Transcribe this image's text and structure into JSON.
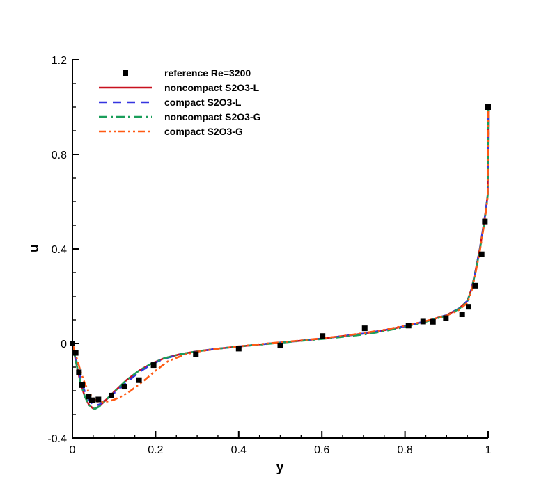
{
  "chart_data": {
    "type": "line",
    "xlabel": "y",
    "ylabel": "u",
    "xlim": [
      0,
      1
    ],
    "ylim": [
      -0.4,
      1.2
    ],
    "x_ticks": [
      {
        "value": 0,
        "label": "0"
      },
      {
        "value": 0.2,
        "label": "0.2"
      },
      {
        "value": 0.4,
        "label": "0.4"
      },
      {
        "value": 0.6,
        "label": "0.6"
      },
      {
        "value": 0.8,
        "label": "0.8"
      },
      {
        "value": 1,
        "label": "1"
      }
    ],
    "y_ticks": [
      {
        "value": -0.4,
        "label": "-0.4"
      },
      {
        "value": 0,
        "label": "0"
      },
      {
        "value": 0.4,
        "label": "0.4"
      },
      {
        "value": 0.8,
        "label": "0.8"
      },
      {
        "value": 1.2,
        "label": "1.2"
      }
    ],
    "grid": false,
    "legend_position": "top-left",
    "series": [
      {
        "name": "reference Re=3200",
        "kind": "markers",
        "color": "#000000",
        "x": [
          0,
          0.0078,
          0.0156,
          0.0234,
          0.0391,
          0.0469,
          0.0625,
          0.0938,
          0.125,
          0.1602,
          0.1953,
          0.2969,
          0.4,
          0.5,
          0.6016,
          0.7031,
          0.8086,
          0.8438,
          0.8672,
          0.8984,
          0.9375,
          0.9531,
          0.9688,
          0.9844,
          0.9922,
          1.0
        ],
        "y": [
          0,
          -0.0398,
          -0.1218,
          -0.1761,
          -0.2243,
          -0.2403,
          -0.2367,
          -0.2204,
          -0.1825,
          -0.1551,
          -0.0914,
          -0.0455,
          -0.0218,
          -0.0089,
          0.0317,
          0.0643,
          0.0757,
          0.0928,
          0.0918,
          0.1073,
          0.1235,
          0.1554,
          0.2446,
          0.3773,
          0.5158,
          1.0
        ]
      },
      {
        "name": "noncompact S2O3-L",
        "kind": "line",
        "color": "#c8101e",
        "dash": "solid",
        "x": [
          0,
          0.01,
          0.02,
          0.03,
          0.04,
          0.05,
          0.055,
          0.065,
          0.08,
          0.1,
          0.13,
          0.16,
          0.19,
          0.22,
          0.26,
          0.3,
          0.35,
          0.4,
          0.45,
          0.5,
          0.55,
          0.6,
          0.65,
          0.7,
          0.75,
          0.8,
          0.85,
          0.9,
          0.93,
          0.95,
          0.96,
          0.97,
          0.98,
          0.99,
          0.995,
          0.999,
          1.0
        ],
        "y": [
          0,
          -0.09,
          -0.17,
          -0.225,
          -0.26,
          -0.275,
          -0.275,
          -0.265,
          -0.24,
          -0.205,
          -0.155,
          -0.115,
          -0.085,
          -0.063,
          -0.045,
          -0.033,
          -0.022,
          -0.013,
          -0.004,
          0.004,
          0.012,
          0.021,
          0.031,
          0.042,
          0.056,
          0.073,
          0.094,
          0.12,
          0.148,
          0.18,
          0.23,
          0.31,
          0.4,
          0.51,
          0.57,
          0.63,
          1.0
        ]
      },
      {
        "name": "compact S2O3-L",
        "kind": "line",
        "color": "#3535e0",
        "dash": "dashed",
        "x": [
          0,
          0.01,
          0.02,
          0.03,
          0.04,
          0.05,
          0.055,
          0.065,
          0.08,
          0.1,
          0.13,
          0.16,
          0.19,
          0.22,
          0.26,
          0.3,
          0.35,
          0.4,
          0.45,
          0.5,
          0.55,
          0.6,
          0.65,
          0.7,
          0.75,
          0.8,
          0.85,
          0.9,
          0.93,
          0.95,
          0.96,
          0.97,
          0.98,
          0.99,
          0.995,
          0.999,
          1.0
        ],
        "y": [
          0,
          -0.075,
          -0.15,
          -0.205,
          -0.24,
          -0.258,
          -0.262,
          -0.258,
          -0.238,
          -0.21,
          -0.165,
          -0.122,
          -0.088,
          -0.065,
          -0.046,
          -0.034,
          -0.022,
          -0.013,
          -0.004,
          0.004,
          0.012,
          0.021,
          0.031,
          0.042,
          0.056,
          0.073,
          0.094,
          0.12,
          0.148,
          0.18,
          0.23,
          0.31,
          0.4,
          0.51,
          0.57,
          0.63,
          1.0
        ]
      },
      {
        "name": "noncompact S2O3-G",
        "kind": "line",
        "color": "#1a9e5a",
        "dash": "dashdot",
        "x": [
          0,
          0.01,
          0.02,
          0.03,
          0.04,
          0.05,
          0.055,
          0.065,
          0.08,
          0.1,
          0.13,
          0.16,
          0.19,
          0.22,
          0.26,
          0.3,
          0.35,
          0.4,
          0.45,
          0.5,
          0.55,
          0.6,
          0.65,
          0.7,
          0.75,
          0.8,
          0.85,
          0.9,
          0.93,
          0.95,
          0.96,
          0.97,
          0.98,
          0.99,
          0.995,
          0.999,
          1.0
        ],
        "y": [
          0,
          -0.09,
          -0.17,
          -0.225,
          -0.26,
          -0.275,
          -0.276,
          -0.266,
          -0.24,
          -0.205,
          -0.155,
          -0.115,
          -0.085,
          -0.063,
          -0.045,
          -0.033,
          -0.022,
          -0.013,
          -0.005,
          0.003,
          0.011,
          0.019,
          0.028,
          0.038,
          0.052,
          0.07,
          0.092,
          0.118,
          0.146,
          0.178,
          0.228,
          0.305,
          0.395,
          0.5,
          0.565,
          0.625,
          1.0
        ]
      },
      {
        "name": "compact S2O3-G",
        "kind": "line",
        "color": "#ff5a14",
        "dash": "dashdotdot",
        "x": [
          0,
          0.01,
          0.02,
          0.03,
          0.04,
          0.05,
          0.06,
          0.07,
          0.08,
          0.1,
          0.12,
          0.14,
          0.17,
          0.2,
          0.23,
          0.27,
          0.3,
          0.35,
          0.4,
          0.45,
          0.5,
          0.55,
          0.6,
          0.65,
          0.7,
          0.75,
          0.8,
          0.85,
          0.9,
          0.93,
          0.95,
          0.96,
          0.97,
          0.98,
          0.99,
          0.995,
          0.999,
          1.0
        ],
        "y": [
          0,
          -0.06,
          -0.12,
          -0.17,
          -0.208,
          -0.232,
          -0.245,
          -0.248,
          -0.247,
          -0.238,
          -0.222,
          -0.2,
          -0.16,
          -0.115,
          -0.075,
          -0.047,
          -0.035,
          -0.022,
          -0.012,
          -0.003,
          0.005,
          0.013,
          0.022,
          0.032,
          0.044,
          0.058,
          0.075,
          0.095,
          0.118,
          0.142,
          0.172,
          0.22,
          0.3,
          0.39,
          0.5,
          0.56,
          0.62,
          1.0
        ]
      }
    ]
  }
}
